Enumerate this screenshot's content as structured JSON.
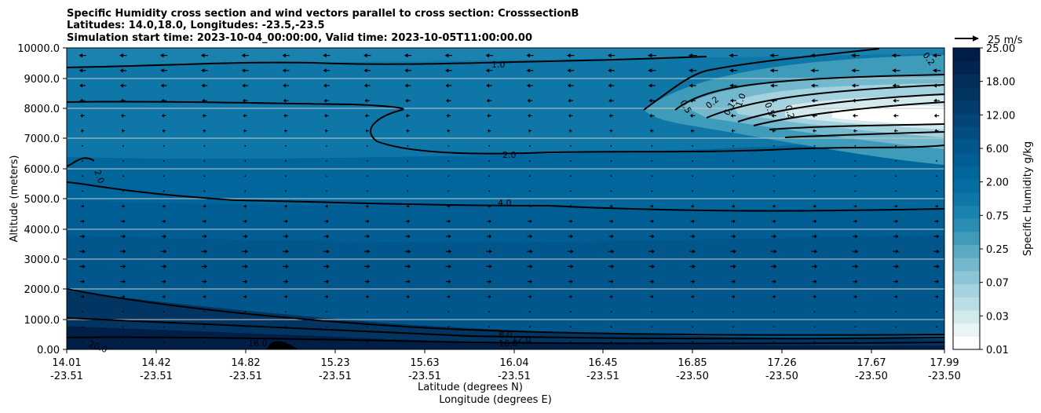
{
  "chart_data": {
    "type": "contour",
    "title_lines": [
      "Specific Humidity cross section and wind vectors parallel to cross section: CrosssectionB",
      "Latitudes: 14.0,18.0, Longitudes: -23.5,-23.5",
      "Simulation start time: 2023-10-04_00:00:00, Valid time: 2023-10-05T11:00:00.00"
    ],
    "ylabel": "Altitude (meters)",
    "xlabel_lines": [
      "Latitude (degrees N)",
      "Longitude (degrees E)"
    ],
    "ylim": [
      0,
      10000
    ],
    "yticks": [
      "0.00",
      "1000.0",
      "2000.0",
      "3000.0",
      "4000.0",
      "5000.0",
      "6000.0",
      "7000.0",
      "8000.0",
      "9000.0",
      "10000.0"
    ],
    "xtick_lat": [
      "14.01",
      "14.42",
      "14.82",
      "15.23",
      "15.63",
      "16.04",
      "16.45",
      "16.85",
      "17.26",
      "17.67",
      "17.99"
    ],
    "xtick_lon": [
      "-23.51",
      "-23.51",
      "-23.51",
      "-23.51",
      "-23.51",
      "-23.51",
      "-23.51",
      "-23.50",
      "-23.50",
      "-23.50",
      "-23.50"
    ],
    "colorbar": {
      "label": "Specific Humidity g/kg",
      "tick_labels": [
        "0.01",
        "0.03",
        "0.07",
        "0.25",
        "0.75",
        "2.00",
        "6.00",
        "12.00",
        "18.00",
        "25.00"
      ],
      "colors": [
        "#ffffff",
        "#e8f4f6",
        "#d2e9ee",
        "#bbdee6",
        "#a4d2de",
        "#8cc5d6",
        "#74b8cd",
        "#5aaac4",
        "#3f9bba",
        "#2b8db4",
        "#1b81ae",
        "#0e77a8",
        "#046ea3",
        "#00669c",
        "#015e94",
        "#01568b",
        "#024e82",
        "#034577",
        "#033d6d",
        "#023562",
        "#022e59",
        "#012550",
        "#011e47"
      ]
    },
    "quiver_key": {
      "label": "25 m/s",
      "value": 25
    },
    "contour_labels": [
      "1.0",
      "2.0",
      "4.0",
      "2.0",
      "8.0",
      "16.0",
      "12.0",
      "16.0",
      "20.0",
      "0.2",
      "0.5",
      "0.2",
      "0.1",
      "1.0",
      "0.5",
      "0.2"
    ],
    "humidity_profile": [
      {
        "altitude": 0,
        "value": 20
      },
      {
        "altitude": 400,
        "value": 16
      },
      {
        "altitude": 1000,
        "value": 12
      },
      {
        "altitude": 2000,
        "value": 8
      },
      {
        "altitude": 4700,
        "value": 4
      },
      {
        "altitude": 6500,
        "value": 2
      },
      {
        "altitude": 9300,
        "value": 1
      },
      {
        "altitude": 10000,
        "value": 0.8
      }
    ],
    "dry_layer": {
      "lat_start": 16.6,
      "altitude_range": [
        7000,
        9500
      ],
      "min_value": 0.01
    },
    "wind_u_profile": [
      {
        "altitude": 0,
        "value": -3
      },
      {
        "altitude": 1500,
        "value": 3
      },
      {
        "altitude": 3000,
        "value": 7
      },
      {
        "altitude": 4500,
        "value": 4
      },
      {
        "altitude": 6000,
        "value": 0
      },
      {
        "altitude": 7500,
        "value": -4
      },
      {
        "altitude": 9000,
        "value": -7
      },
      {
        "altitude": 10000,
        "value": -8
      }
    ]
  }
}
